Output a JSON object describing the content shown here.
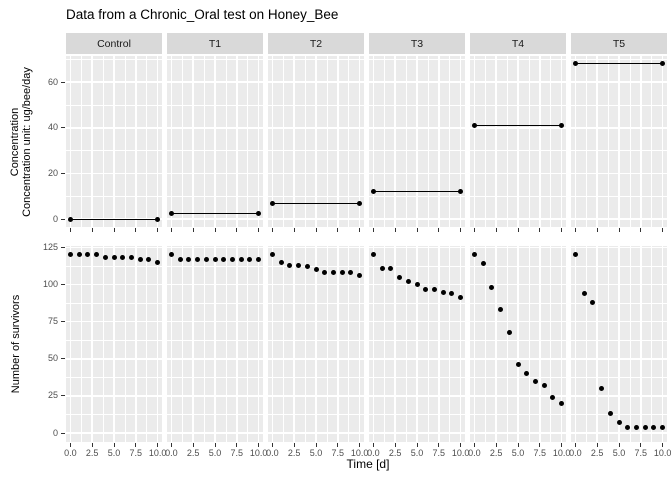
{
  "title": "Data from a Chronic_Oral test on Honey_Bee",
  "axes": {
    "x_title": "Time [d]",
    "y_top_title_line1": "Concentration",
    "y_top_title_line2": "Concentration unit: ug/bee/day",
    "y_bottom_title": "Number of survivors",
    "x_tick_labels": [
      "0.0",
      "2.5",
      "5.0",
      "7.5",
      "10.0"
    ],
    "y_top_tick_labels": [
      "0",
      "20",
      "40",
      "60"
    ],
    "y_bottom_tick_labels": [
      "0",
      "25",
      "50",
      "75",
      "100",
      "125"
    ]
  },
  "colors": {
    "panel_bg": "#EBEBEB",
    "strip_bg": "#D9D9D9",
    "gridline": "#FFFFFF",
    "point": "#000000",
    "axis_text": "#4D4D4D",
    "title_text": "#000000"
  },
  "chart_data": {
    "type": "scatter",
    "title": "Data from a Chronic_Oral test on Honey_Bee",
    "xlabel": "Time [d]",
    "facets": [
      "Control",
      "T1",
      "T2",
      "T3",
      "T4",
      "T5"
    ],
    "x_days": [
      0,
      1,
      2,
      3,
      4,
      5,
      6,
      7,
      8,
      9,
      10
    ],
    "xlim": [
      0,
      10
    ],
    "grid": true,
    "top_row": {
      "ylabel": "Concentration (ug/bee/day)",
      "ylim": [
        0,
        70
      ],
      "description": "Constant concentration per treatment, drawn as a horizontal segment from day 0 to day 10",
      "series": [
        {
          "name": "Control",
          "concentration": 0
        },
        {
          "name": "T1",
          "concentration": 2.5
        },
        {
          "name": "T2",
          "concentration": 7
        },
        {
          "name": "T3",
          "concentration": 12
        },
        {
          "name": "T4",
          "concentration": 41
        },
        {
          "name": "T5",
          "concentration": 68
        }
      ]
    },
    "bottom_row": {
      "ylabel": "Number of survivors",
      "ylim": [
        0,
        125
      ],
      "series": [
        {
          "name": "Control",
          "values": [
            120,
            120,
            120,
            120,
            118,
            118,
            118,
            118,
            117,
            117,
            115
          ]
        },
        {
          "name": "T1",
          "values": [
            120,
            117,
            117,
            117,
            117,
            117,
            117,
            117,
            117,
            117,
            117
          ]
        },
        {
          "name": "T2",
          "values": [
            120,
            115,
            113,
            113,
            112,
            110,
            108,
            108,
            108,
            108,
            106
          ]
        },
        {
          "name": "T3",
          "values": [
            120,
            111,
            111,
            105,
            102,
            100,
            97,
            97,
            95,
            94,
            91
          ]
        },
        {
          "name": "T4",
          "values": [
            120,
            114,
            98,
            83,
            68,
            46,
            40,
            35,
            32,
            24,
            20
          ]
        },
        {
          "name": "T5",
          "values": [
            120,
            94,
            88,
            30,
            13,
            7,
            4,
            4,
            4,
            4,
            4
          ]
        }
      ]
    }
  }
}
